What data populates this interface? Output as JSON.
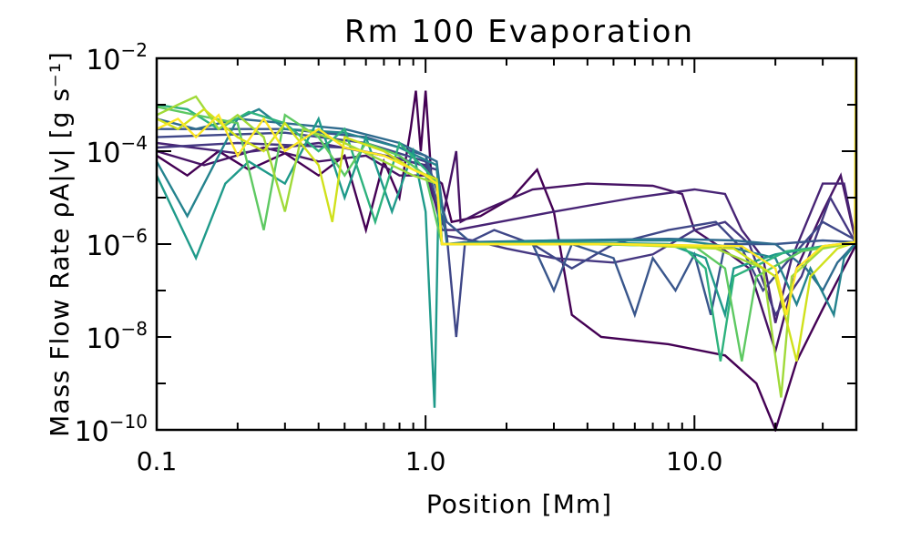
{
  "chart_data": {
    "type": "line",
    "title": "Rm 100 Evaporation",
    "xlabel": "Position [Mm]",
    "ylabel": "Mass Flow Rate ρA|v| [g s⁻¹]",
    "x_scale": "log",
    "y_scale": "log",
    "xlim": [
      0.1,
      40
    ],
    "ylim": [
      1e-10,
      0.01
    ],
    "x_ticks": [
      {
        "value": 0.1,
        "label": "0.1"
      },
      {
        "value": 1,
        "label": "1.0"
      },
      {
        "value": 10,
        "label": "10.0"
      }
    ],
    "y_ticks": [
      {
        "value": 0.01,
        "base": "10",
        "exp": "−2"
      },
      {
        "value": 0.0001,
        "base": "10",
        "exp": "−4"
      },
      {
        "value": 1e-06,
        "base": "10",
        "exp": "−6"
      },
      {
        "value": 1e-08,
        "base": "10",
        "exp": "−8"
      },
      {
        "value": 1e-10,
        "base": "10",
        "exp": "−10"
      }
    ],
    "grid": false,
    "colormap": "viridis",
    "series": [
      {
        "color": "#440154",
        "points": [
          [
            0.1,
            8e-05
          ],
          [
            0.13,
            3e-05
          ],
          [
            0.17,
            0.0001
          ],
          [
            0.22,
            4e-05
          ],
          [
            0.3,
            9e-05
          ],
          [
            0.4,
            3e-05
          ],
          [
            0.5,
            8e-05
          ],
          [
            0.6,
            2e-06
          ],
          [
            0.7,
            6e-05
          ],
          [
            0.8,
            1e-05
          ],
          [
            0.88,
            0.0003
          ],
          [
            0.92,
            0.002
          ],
          [
            0.96,
            0.0001
          ],
          [
            1.0,
            0.002
          ],
          [
            1.05,
            3e-05
          ],
          [
            1.15,
            2e-05
          ],
          [
            1.25,
            3e-06
          ],
          [
            1.6,
            4e-06
          ],
          [
            2.1,
            1e-05
          ],
          [
            2.6,
            4e-05
          ],
          [
            3.0,
            5e-06
          ],
          [
            3.5,
            3e-08
          ],
          [
            4.5,
            1e-08
          ],
          [
            8,
            7e-09
          ],
          [
            13,
            4e-09
          ],
          [
            17,
            1e-09
          ],
          [
            20,
            1e-10
          ],
          [
            24,
            3e-09
          ],
          [
            30,
            4e-08
          ],
          [
            40,
            1e-06
          ]
        ]
      },
      {
        "color": "#471365",
        "points": [
          [
            0.1,
            0.0001
          ],
          [
            0.15,
            5e-05
          ],
          [
            0.25,
            0.00012
          ],
          [
            0.4,
            6e-05
          ],
          [
            0.6,
            8e-05
          ],
          [
            0.8,
            3e-05
          ],
          [
            1.0,
            3e-05
          ],
          [
            1.15,
            3e-06
          ],
          [
            1.3,
            0.0001
          ],
          [
            1.35,
            3e-06
          ],
          [
            1.6,
            5e-06
          ],
          [
            2.5,
            1.5e-05
          ],
          [
            4,
            2e-05
          ],
          [
            7,
            1.8e-05
          ],
          [
            9,
            1.2e-05
          ],
          [
            10,
            2e-06
          ],
          [
            12,
            1e-06
          ],
          [
            16,
            3e-07
          ],
          [
            20,
            5e-09
          ],
          [
            24,
            3e-07
          ],
          [
            30,
            5e-06
          ],
          [
            35,
            3e-05
          ],
          [
            40,
            1e-06
          ]
        ]
      },
      {
        "color": "#482475",
        "points": [
          [
            0.1,
            0.00015
          ],
          [
            0.2,
            9e-05
          ],
          [
            0.4,
            0.00015
          ],
          [
            0.7,
            8e-05
          ],
          [
            1.0,
            5e-05
          ],
          [
            1.15,
            2e-06
          ],
          [
            1.3,
            2e-06
          ],
          [
            3,
            5e-06
          ],
          [
            6,
            1e-05
          ],
          [
            10,
            1.5e-05
          ],
          [
            13,
            1.2e-05
          ],
          [
            15,
            2e-06
          ],
          [
            18,
            5e-07
          ],
          [
            20,
            2e-08
          ],
          [
            23,
            5e-07
          ],
          [
            30,
            2e-05
          ],
          [
            36,
            2e-05
          ],
          [
            40,
            1e-06
          ]
        ]
      },
      {
        "color": "#453781",
        "points": [
          [
            0.1,
            0.00012
          ],
          [
            0.2,
            0.00015
          ],
          [
            0.5,
            0.00012
          ],
          [
            0.8,
            7e-05
          ],
          [
            1.1,
            4e-05
          ],
          [
            1.2,
            1.5e-06
          ],
          [
            1.5,
            1.2e-06
          ],
          [
            2,
            8e-07
          ],
          [
            3,
            5e-07
          ],
          [
            5,
            4e-07
          ],
          [
            7,
            6e-07
          ],
          [
            10,
            2e-06
          ],
          [
            13,
            3e-06
          ],
          [
            16,
            1e-06
          ],
          [
            20,
            3e-08
          ],
          [
            25,
            2e-07
          ],
          [
            32,
            1e-05
          ],
          [
            40,
            1e-06
          ]
        ]
      },
      {
        "color": "#3f4788",
        "points": [
          [
            0.1,
            0.0002
          ],
          [
            0.3,
            0.00025
          ],
          [
            0.6,
            0.00015
          ],
          [
            1.0,
            6e-05
          ],
          [
            1.2,
            1.5e-06
          ],
          [
            1.3,
            1e-08
          ],
          [
            1.4,
            1e-06
          ],
          [
            1.8,
            2e-06
          ],
          [
            2.5,
            1e-06
          ],
          [
            3.5,
            3e-07
          ],
          [
            5,
            1e-06
          ],
          [
            8,
            2e-06
          ],
          [
            12,
            3e-06
          ],
          [
            15,
            8e-07
          ],
          [
            18,
            1e-07
          ],
          [
            22,
            4e-07
          ],
          [
            30,
            3e-06
          ],
          [
            40,
            1.2e-06
          ]
        ]
      },
      {
        "color": "#39568c",
        "points": [
          [
            0.1,
            0.0003
          ],
          [
            0.3,
            0.0003
          ],
          [
            0.6,
            0.0002
          ],
          [
            1.0,
            8e-05
          ],
          [
            1.2,
            3e-06
          ],
          [
            1.5,
            1e-06
          ],
          [
            2.5,
            1e-06
          ],
          [
            3,
            1e-07
          ],
          [
            3.5,
            1e-06
          ],
          [
            5,
            5e-07
          ],
          [
            6,
            3e-08
          ],
          [
            7,
            5e-07
          ],
          [
            8.5,
            1e-07
          ],
          [
            10,
            6e-07
          ],
          [
            11.5,
            3e-08
          ],
          [
            13,
            1e-06
          ],
          [
            20,
            1e-06
          ],
          [
            30,
            1.2e-06
          ],
          [
            40,
            1.1e-06
          ]
        ]
      },
      {
        "color": "#2f6b8e",
        "points": [
          [
            0.1,
            0.0005
          ],
          [
            0.14,
            0.0003
          ],
          [
            0.2,
            0.0005
          ],
          [
            0.3,
            0.0004
          ],
          [
            0.5,
            0.0003
          ],
          [
            0.8,
            0.00015
          ],
          [
            1.1,
            6e-05
          ],
          [
            1.2,
            1e-06
          ],
          [
            1.4,
            1.1e-06
          ],
          [
            3,
            1.2e-06
          ],
          [
            8,
            1.3e-06
          ],
          [
            14,
            1.2e-06
          ],
          [
            20,
            1e-06
          ],
          [
            26,
            3e-07
          ],
          [
            30,
            1e-07
          ],
          [
            34,
            4e-07
          ],
          [
            40,
            1.1e-06
          ]
        ]
      },
      {
        "color": "#25838e",
        "points": [
          [
            0.1,
            6e-05
          ],
          [
            0.13,
            4e-06
          ],
          [
            0.17,
            8e-05
          ],
          [
            0.2,
            0.0005
          ],
          [
            0.24,
            0.0008
          ],
          [
            0.3,
            0.0003
          ],
          [
            0.5,
            0.00025
          ],
          [
            0.8,
            0.00012
          ],
          [
            1.1,
            5e-05
          ],
          [
            1.15,
            1e-06
          ],
          [
            3,
            1.2e-06
          ],
          [
            9,
            1.2e-06
          ],
          [
            13,
            9e-07
          ],
          [
            20,
            5e-07
          ],
          [
            24,
            5e-08
          ],
          [
            27,
            3e-07
          ],
          [
            33,
            3e-08
          ],
          [
            36,
            5e-07
          ],
          [
            40,
            1.1e-06
          ]
        ]
      },
      {
        "color": "#1f9a8a",
        "points": [
          [
            0.1,
            3e-05
          ],
          [
            0.14,
            5e-07
          ],
          [
            0.18,
            2e-05
          ],
          [
            0.22,
            6e-05
          ],
          [
            0.3,
            2e-05
          ],
          [
            0.4,
            0.0005
          ],
          [
            0.5,
            1e-05
          ],
          [
            0.6,
            0.0002
          ],
          [
            0.75,
            5e-06
          ],
          [
            0.9,
            0.0001
          ],
          [
            1.0,
            5e-06
          ],
          [
            1.08,
            3e-10
          ],
          [
            1.12,
            2e-05
          ],
          [
            1.15,
            1e-06
          ],
          [
            3,
            1.1e-06
          ],
          [
            8,
            1e-06
          ],
          [
            11,
            5e-07
          ],
          [
            13,
            3e-08
          ],
          [
            14,
            3e-07
          ],
          [
            20,
            6e-07
          ],
          [
            30,
            9e-07
          ],
          [
            40,
            1.1e-06
          ]
        ]
      },
      {
        "color": "#2db27d",
        "points": [
          [
            0.1,
            0.001
          ],
          [
            0.13,
            0.0008
          ],
          [
            0.17,
            0.0003
          ],
          [
            0.22,
            0.0007
          ],
          [
            0.3,
            0.0004
          ],
          [
            0.4,
            0.0001
          ],
          [
            0.5,
            0.0003
          ],
          [
            0.65,
            3e-06
          ],
          [
            0.8,
            0.00015
          ],
          [
            1.0,
            4e-05
          ],
          [
            1.1,
            2e-05
          ],
          [
            1.15,
            1e-06
          ],
          [
            4,
            1e-06
          ],
          [
            9,
            9e-07
          ],
          [
            11,
            3e-07
          ],
          [
            12.5,
            3e-09
          ],
          [
            14,
            2e-07
          ],
          [
            22,
            7e-07
          ],
          [
            40,
            1.1e-06
          ]
        ]
      },
      {
        "color": "#5ec962",
        "points": [
          [
            0.1,
            0.0009
          ],
          [
            0.14,
            0.0006
          ],
          [
            0.2,
            0.0004
          ],
          [
            0.25,
            2e-06
          ],
          [
            0.3,
            0.0006
          ],
          [
            0.4,
            0.0002
          ],
          [
            0.5,
            3e-05
          ],
          [
            0.6,
            0.00015
          ],
          [
            0.8,
            8e-05
          ],
          [
            1.0,
            3e-05
          ],
          [
            1.15,
            1e-06
          ],
          [
            4,
            1e-06
          ],
          [
            10,
            9e-07
          ],
          [
            13,
            3e-07
          ],
          [
            15,
            3e-09
          ],
          [
            17,
            2e-07
          ],
          [
            25,
            7e-07
          ],
          [
            40,
            1.1e-06
          ]
        ]
      },
      {
        "color": "#a0da39",
        "points": [
          [
            0.1,
            0.0006
          ],
          [
            0.12,
            0.001
          ],
          [
            0.14,
            0.0015
          ],
          [
            0.17,
            0.0003
          ],
          [
            0.2,
            0.0006
          ],
          [
            0.25,
            0.0002
          ],
          [
            0.3,
            5e-06
          ],
          [
            0.35,
            0.0003
          ],
          [
            0.5,
            0.00015
          ],
          [
            0.7,
            6e-05
          ],
          [
            0.9,
            3e-05
          ],
          [
            1.1,
            2e-05
          ],
          [
            1.15,
            1e-06
          ],
          [
            5,
            1e-06
          ],
          [
            12,
            8e-07
          ],
          [
            18,
            3e-07
          ],
          [
            21,
            5e-10
          ],
          [
            23,
            2e-07
          ],
          [
            30,
            8e-07
          ],
          [
            40,
            1.1e-06
          ]
        ]
      },
      {
        "color": "#d0e11c",
        "points": [
          [
            0.1,
            0.0005
          ],
          [
            0.12,
            0.0003
          ],
          [
            0.15,
            0.0008
          ],
          [
            0.2,
            0.0002
          ],
          [
            0.25,
            0.0001
          ],
          [
            0.3,
            0.0004
          ],
          [
            0.4,
            5e-05
          ],
          [
            0.45,
            3e-06
          ],
          [
            0.5,
            0.0002
          ],
          [
            0.7,
            0.0001
          ],
          [
            0.9,
            4e-05
          ],
          [
            1.1,
            2.5e-05
          ],
          [
            1.15,
            1e-06
          ],
          [
            5,
            1e-06
          ],
          [
            14,
            8e-07
          ],
          [
            20,
            2e-07
          ],
          [
            24,
            3e-09
          ],
          [
            27,
            2e-07
          ],
          [
            34,
            8e-07
          ],
          [
            40,
            1.1e-06
          ]
        ]
      },
      {
        "color": "#fde725",
        "points": [
          [
            0.1,
            0.0003
          ],
          [
            0.12,
            0.0005
          ],
          [
            0.14,
            0.0002
          ],
          [
            0.17,
            0.0006
          ],
          [
            0.2,
            8e-05
          ],
          [
            0.25,
            0.0005
          ],
          [
            0.3,
            0.0001
          ],
          [
            0.4,
            0.0003
          ],
          [
            0.5,
            0.00012
          ],
          [
            0.7,
            8e-05
          ],
          [
            0.9,
            4e-05
          ],
          [
            1.0,
            3e-05
          ],
          [
            1.1,
            2e-05
          ],
          [
            1.15,
            1e-06
          ],
          [
            5,
            1e-06
          ],
          [
            15,
            9e-07
          ],
          [
            20,
            3e-07
          ],
          [
            22,
            3e-08
          ],
          [
            24,
            3e-07
          ],
          [
            30,
            9e-07
          ],
          [
            39.5,
            1.1e-06
          ],
          [
            39.8,
            0.01
          ]
        ]
      }
    ]
  }
}
